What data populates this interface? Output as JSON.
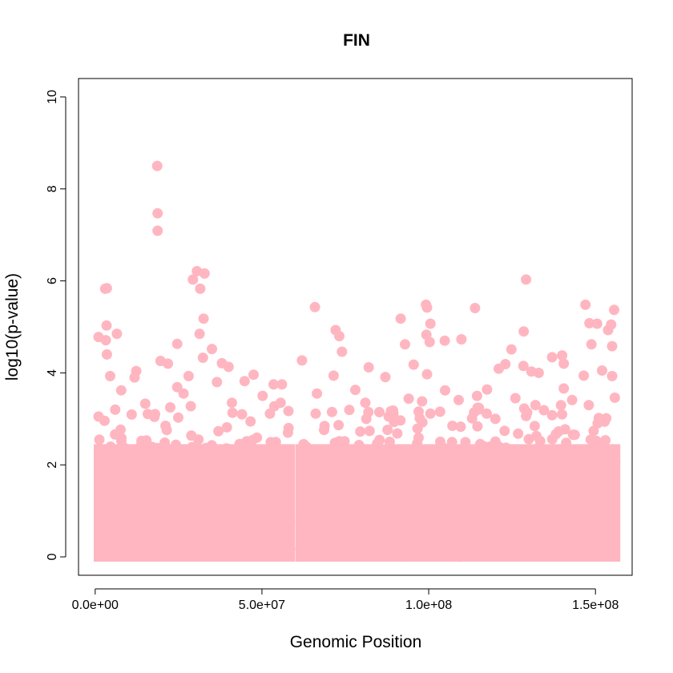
{
  "chart_data": {
    "type": "scatter",
    "title": "FIN",
    "xlabel": "Genomic Position",
    "ylabel": "log10(p-value)",
    "xlim": [
      -5000000,
      161000000
    ],
    "ylim": [
      -0.4,
      10.4
    ],
    "xticks": [
      0,
      50000000,
      100000000,
      150000000
    ],
    "xtick_labels": [
      "0.0e+00",
      "5.0e+07",
      "1.0e+08",
      "1.5e+08"
    ],
    "yticks": [
      0,
      2,
      4,
      6,
      8,
      10
    ],
    "ytick_labels": [
      "0",
      "2",
      "4",
      "6",
      "8",
      "10"
    ],
    "grid": false,
    "point_color": "#ffb6c1",
    "segments": [
      {
        "x_start": 1000000,
        "x_end": 58500000
      },
      {
        "x_start": 61500000,
        "x_end": 156000000
      }
    ],
    "series": [
      {
        "points": [
          [
            18600000,
            8.5
          ],
          [
            18700000,
            7.47
          ],
          [
            18700000,
            7.09
          ],
          [
            30500000,
            6.21
          ],
          [
            32800000,
            6.16
          ],
          [
            29300000,
            6.03
          ],
          [
            31500000,
            5.83
          ],
          [
            3000000,
            5.83
          ],
          [
            3500000,
            5.84
          ],
          [
            129200000,
            6.03
          ],
          [
            99200000,
            5.48
          ],
          [
            147000000,
            5.48
          ],
          [
            99500000,
            5.42
          ],
          [
            65900000,
            5.43
          ],
          [
            113900000,
            5.41
          ],
          [
            155600000,
            5.37
          ],
          [
            32500000,
            5.18
          ],
          [
            91600000,
            5.18
          ],
          [
            148200000,
            5.08
          ],
          [
            100500000,
            5.07
          ],
          [
            150500000,
            5.07
          ],
          [
            154700000,
            5.05
          ],
          [
            3400000,
            5.03
          ],
          [
            72100000,
            4.93
          ],
          [
            128500000,
            4.9
          ],
          [
            153800000,
            4.93
          ],
          [
            31300000,
            4.85
          ],
          [
            6500000,
            4.85
          ],
          [
            99300000,
            4.83
          ],
          [
            73200000,
            4.8
          ],
          [
            1000000,
            4.78
          ],
          [
            109800000,
            4.73
          ],
          [
            3200000,
            4.71
          ],
          [
            24600000,
            4.63
          ],
          [
            100300000,
            4.67
          ],
          [
            104800000,
            4.7
          ],
          [
            92900000,
            4.62
          ],
          [
            148800000,
            4.62
          ],
          [
            155000000,
            4.58
          ],
          [
            35000000,
            4.52
          ],
          [
            124800000,
            4.51
          ],
          [
            74000000,
            4.46
          ],
          [
            3500000,
            4.4
          ],
          [
            140000000,
            4.38
          ],
          [
            137000000,
            4.34
          ],
          [
            32300000,
            4.33
          ],
          [
            62000000,
            4.27
          ],
          [
            19600000,
            4.26
          ],
          [
            21800000,
            4.2
          ],
          [
            38000000,
            4.21
          ],
          [
            123000000,
            4.19
          ],
          [
            95500000,
            4.18
          ],
          [
            128400000,
            4.15
          ],
          [
            140500000,
            4.2
          ],
          [
            82000000,
            4.12
          ],
          [
            40000000,
            4.13
          ],
          [
            121000000,
            4.09
          ],
          [
            12300000,
            4.04
          ],
          [
            133000000,
            4.0
          ],
          [
            152000000,
            4.05
          ],
          [
            47500000,
            3.96
          ],
          [
            99500000,
            3.97
          ],
          [
            130800000,
            4.03
          ],
          [
            4500000,
            3.93
          ],
          [
            28000000,
            3.93
          ],
          [
            71500000,
            3.94
          ],
          [
            87000000,
            3.91
          ],
          [
            146500000,
            3.94
          ],
          [
            155000000,
            3.93
          ],
          [
            11800000,
            3.9
          ],
          [
            44800000,
            3.82
          ],
          [
            36500000,
            3.8
          ],
          [
            53500000,
            3.75
          ],
          [
            56000000,
            3.75
          ],
          [
            7800000,
            3.62
          ],
          [
            24600000,
            3.69
          ],
          [
            78000000,
            3.63
          ],
          [
            104900000,
            3.62
          ],
          [
            117500000,
            3.64
          ],
          [
            140500000,
            3.66
          ],
          [
            1000000,
            3.05
          ],
          [
            26500000,
            3.55
          ],
          [
            50200000,
            3.5
          ],
          [
            66500000,
            3.55
          ],
          [
            94000000,
            3.44
          ],
          [
            109000000,
            3.41
          ],
          [
            114500000,
            3.5
          ],
          [
            126000000,
            3.45
          ],
          [
            143000000,
            3.41
          ],
          [
            155800000,
            3.46
          ],
          [
            15000000,
            3.33
          ],
          [
            41000000,
            3.35
          ],
          [
            55600000,
            3.35
          ],
          [
            81000000,
            3.35
          ],
          [
            98000000,
            3.38
          ],
          [
            132000000,
            3.3
          ],
          [
            148000000,
            3.3
          ],
          [
            6000000,
            3.2
          ],
          [
            22500000,
            3.25
          ],
          [
            44000000,
            3.1
          ],
          [
            71000000,
            3.15
          ],
          [
            88000000,
            3.05
          ],
          [
            120000000,
            3.0
          ],
          [
            137000000,
            3.08
          ],
          [
            151000000,
            3.02
          ],
          [
            58000000,
            2.8
          ],
          [
            62500000,
            2.45
          ],
          [
            57800000,
            2.7
          ]
        ]
      }
    ]
  }
}
